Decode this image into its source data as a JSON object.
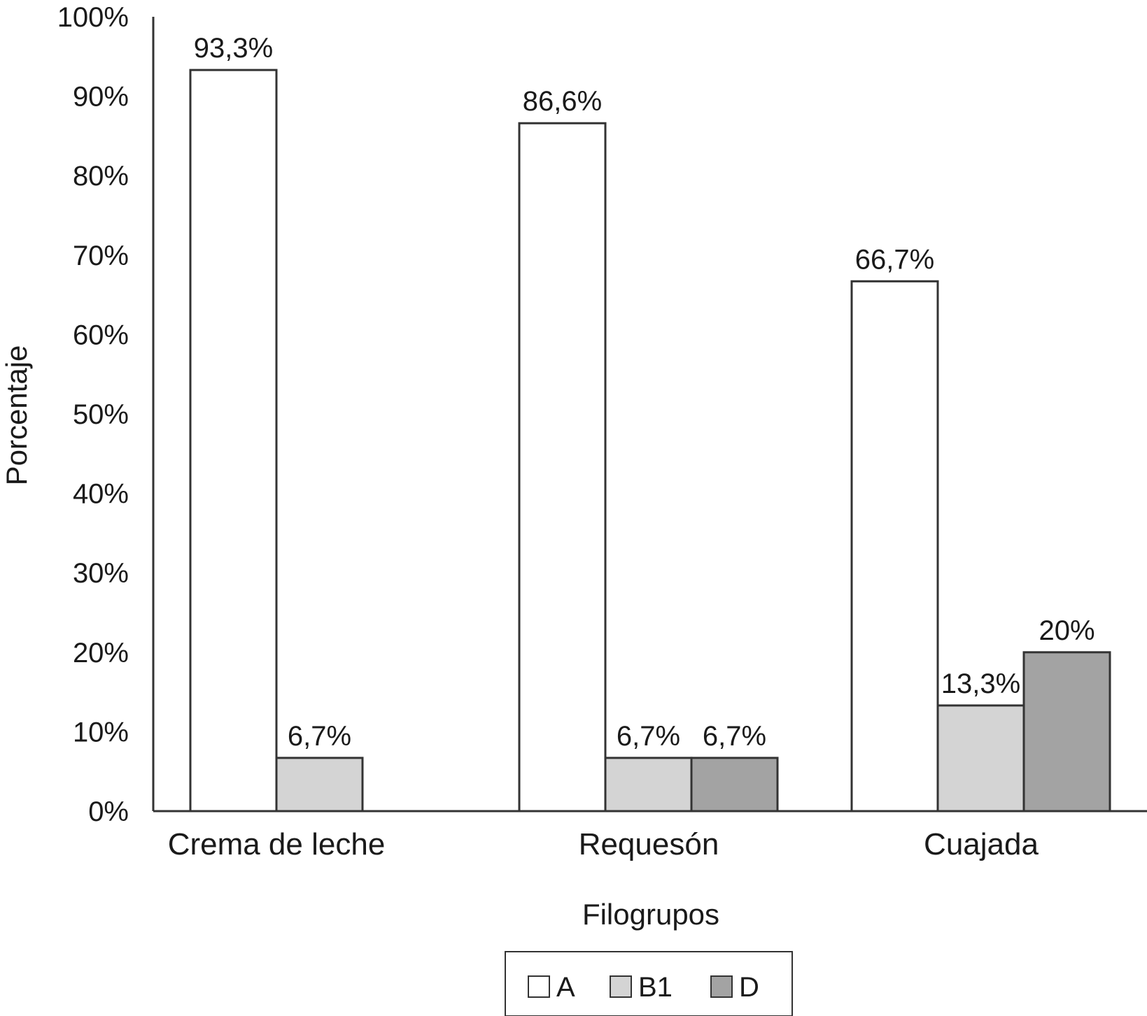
{
  "chart_data": {
    "type": "bar",
    "categories": [
      "Crema de leche",
      "Requesón",
      "Cuajada"
    ],
    "series": [
      {
        "name": "A",
        "values": [
          93.3,
          86.6,
          66.7
        ],
        "labels": [
          "93,3%",
          "86,6%",
          "66,7%"
        ],
        "color": "#ffffff"
      },
      {
        "name": "B1",
        "values": [
          6.7,
          6.7,
          13.3
        ],
        "labels": [
          "6,7%",
          "6,7%",
          "13,3%"
        ],
        "color": "#d4d4d4"
      },
      {
        "name": "D",
        "values": [
          0,
          6.7,
          20
        ],
        "labels": [
          "",
          "6,7%",
          "20%"
        ],
        "color": "#a3a3a3"
      }
    ],
    "xlabel": "Filogrupos",
    "ylabel": "Porcentaje",
    "ylim": [
      0,
      100
    ],
    "yticks": [
      "0%",
      "10%",
      "20%",
      "30%",
      "40%",
      "50%",
      "60%",
      "70%",
      "80%",
      "90%",
      "100%"
    ],
    "grid": false,
    "legend_position": "bottom-center"
  }
}
